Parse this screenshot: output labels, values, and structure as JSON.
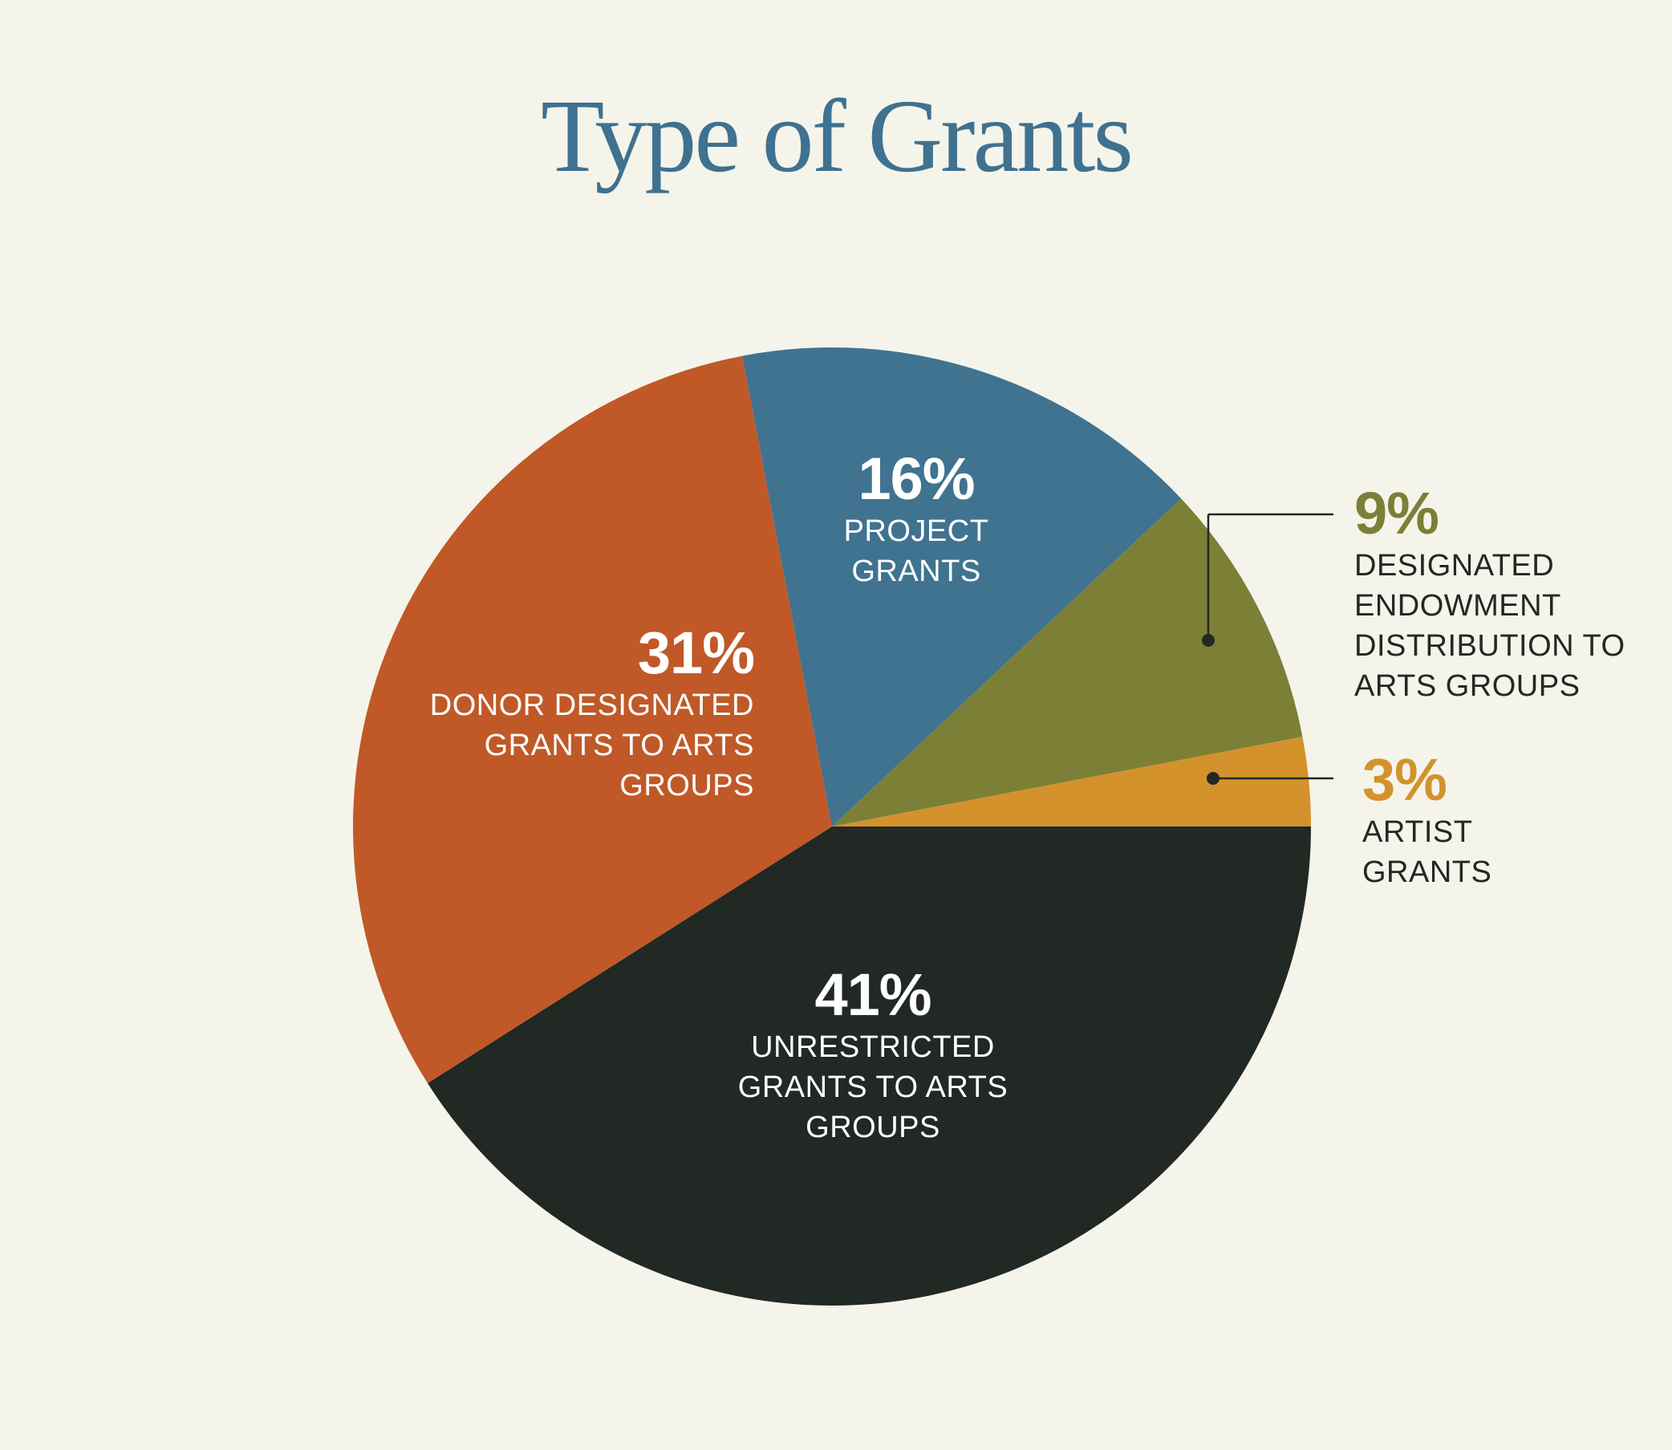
{
  "title": "Type of Grants",
  "chart_data": {
    "type": "pie",
    "title": "Type of Grants",
    "start_angle_deg": 0,
    "direction": "clockwise",
    "slices": [
      {
        "label_lines": [
          "UNRESTRICTED",
          "GRANTS TO ARTS",
          "GROUPS"
        ],
        "value": 41,
        "value_label": "41%",
        "color": "#222823"
      },
      {
        "label_lines": [
          "DONOR DESIGNATED",
          "GRANTS TO ARTS",
          "GROUPS"
        ],
        "value": 31,
        "value_label": "31%",
        "color": "#c05927"
      },
      {
        "label_lines": [
          "PROJECT",
          "GRANTS"
        ],
        "value": 16,
        "value_label": "16%",
        "color": "#3f7390"
      },
      {
        "label_lines": [
          "DESIGNATED",
          "ENDOWMENT",
          "DISTRIBUTION TO",
          "ARTS GROUPS"
        ],
        "value": 9,
        "value_label": "9%",
        "color": "#7c7f36"
      },
      {
        "label_lines": [
          "ARTIST",
          "GRANTS"
        ],
        "value": 3,
        "value_label": "3%",
        "color": "#d3922c"
      }
    ],
    "label_colors": {
      "inside": "#ffffff",
      "outside_text": "#222823"
    }
  }
}
